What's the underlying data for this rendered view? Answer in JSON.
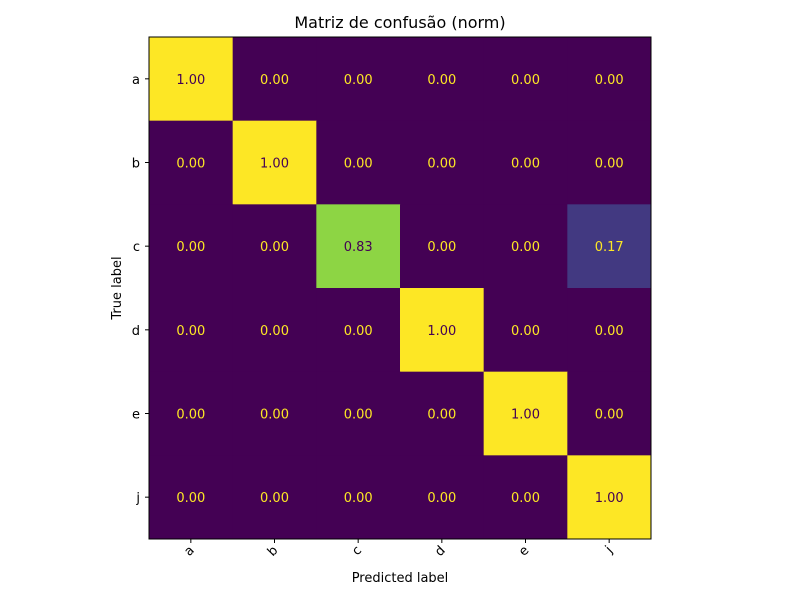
{
  "chart_data": {
    "type": "heatmap",
    "title": "Matriz de confusão (norm)",
    "xlabel": "Predicted label",
    "ylabel": "True label",
    "x_categories": [
      "a",
      "b",
      "c",
      "d",
      "e",
      "j"
    ],
    "y_categories": [
      "a",
      "b",
      "c",
      "d",
      "e",
      "j"
    ],
    "values": [
      [
        1.0,
        0.0,
        0.0,
        0.0,
        0.0,
        0.0
      ],
      [
        0.0,
        1.0,
        0.0,
        0.0,
        0.0,
        0.0
      ],
      [
        0.0,
        0.0,
        0.83,
        0.0,
        0.0,
        0.17
      ],
      [
        0.0,
        0.0,
        0.0,
        1.0,
        0.0,
        0.0
      ],
      [
        0.0,
        0.0,
        0.0,
        0.0,
        1.0,
        0.0
      ],
      [
        0.0,
        0.0,
        0.0,
        0.0,
        0.0,
        1.0
      ]
    ],
    "value_format": "0.00",
    "vmin": 0,
    "vmax": 1,
    "colormap": "viridis",
    "colorbar": false,
    "x_tick_rotation_deg": 45
  }
}
